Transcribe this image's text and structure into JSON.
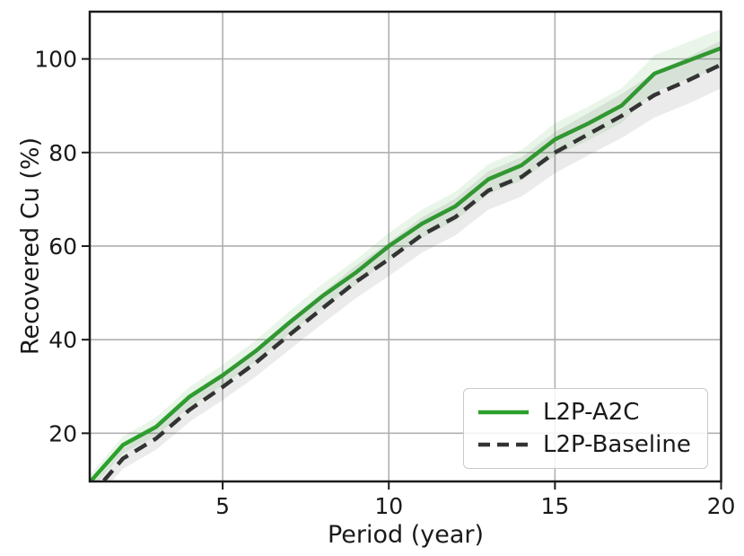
{
  "chart_data": {
    "type": "line",
    "title": "",
    "xlabel": "Period (year)",
    "ylabel": "Recovered Cu (%)",
    "x": [
      1,
      2,
      3,
      4,
      5,
      6,
      7,
      8,
      9,
      10,
      11,
      12,
      13,
      14,
      15,
      16,
      17,
      18,
      19,
      20
    ],
    "series": [
      {
        "name": "L2P-A2C",
        "style": "solid",
        "color": "#2ca02c",
        "band_color": "rgba(44,160,44,0.10)",
        "values": [
          9.5,
          17.5,
          21.4,
          27.8,
          32.4,
          37.6,
          43.6,
          49.3,
          54.3,
          60.0,
          64.8,
          68.5,
          74.3,
          77.3,
          82.8,
          86.2,
          90.0,
          96.9,
          99.6,
          102.3
        ],
        "band_halfwidth": [
          1.6,
          1.8,
          2.0,
          2.1,
          2.2,
          2.3,
          2.4,
          2.6,
          2.7,
          2.8,
          3.0,
          3.1,
          3.2,
          3.3,
          3.5,
          3.6,
          3.7,
          3.9,
          4.0,
          4.1
        ]
      },
      {
        "name": "L2P-Baseline",
        "style": "dashed",
        "color": "#333333",
        "band_color": "rgba(90,90,90,0.12)",
        "values": [
          6.4,
          14.6,
          18.9,
          25.0,
          29.9,
          35.1,
          41.0,
          46.7,
          52.3,
          57.2,
          62.4,
          66.2,
          71.9,
          74.8,
          80.0,
          83.9,
          87.8,
          92.3,
          95.4,
          98.8
        ],
        "band_halfwidth": [
          2.0,
          2.2,
          2.4,
          2.6,
          2.8,
          3.0,
          3.2,
          3.3,
          3.5,
          3.6,
          3.8,
          3.9,
          4.1,
          4.2,
          4.4,
          4.5,
          4.7,
          4.8,
          5.0,
          5.1
        ]
      }
    ],
    "x_ticks": [
      5,
      10,
      15,
      20
    ],
    "y_ticks": [
      20,
      40,
      60,
      80,
      100
    ],
    "xlim": [
      1,
      20
    ],
    "ylim": [
      9.7,
      110.1
    ],
    "grid": true,
    "legend_position": "lower right",
    "colors": {
      "grid": "#b0b0b0",
      "spine": "#1a1a1a",
      "text": "#1a1a1a",
      "background": "#ffffff"
    }
  }
}
